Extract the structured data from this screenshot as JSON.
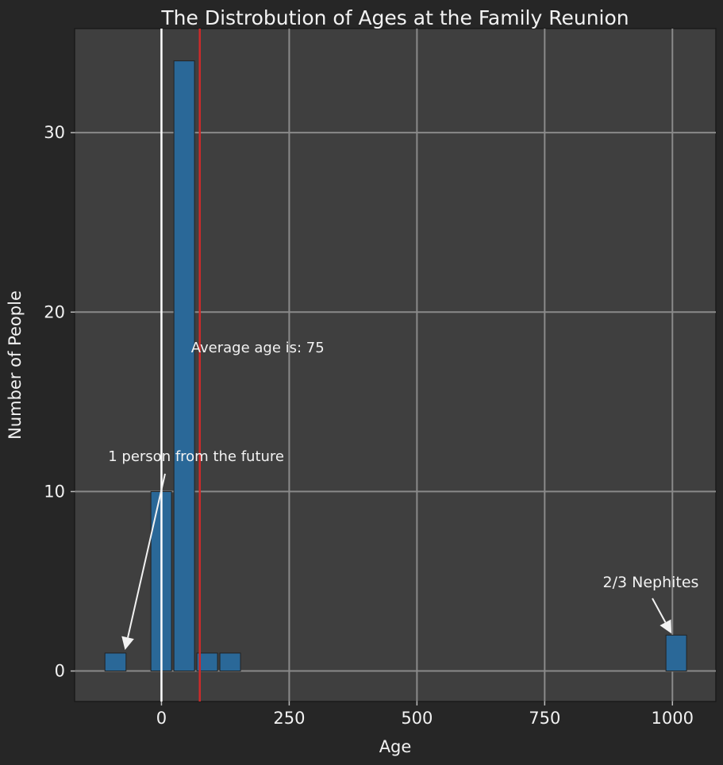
{
  "chart_data": {
    "type": "bar",
    "title": "The Distrobution of Ages at the Family Reunion",
    "xlabel": "Age",
    "ylabel": "Number of People",
    "xlim": [
      -170,
      1085
    ],
    "ylim": [
      -1.7,
      35.8
    ],
    "xticks": [
      0,
      250,
      500,
      750,
      1000
    ],
    "yticks": [
      0,
      10,
      20,
      30
    ],
    "xtick_labels": [
      "0",
      "250",
      "500",
      "750",
      "1000"
    ],
    "ytick_labels": [
      "0",
      "10",
      "20",
      "30"
    ],
    "grid": true,
    "bins": [
      {
        "x0": -113,
        "x1": -67,
        "count": 1
      },
      {
        "x0": -23,
        "x1": 22,
        "count": 10
      },
      {
        "x0": 22,
        "x1": 67,
        "count": 34
      },
      {
        "x0": 67,
        "x1": 112,
        "count": 1
      },
      {
        "x0": 112,
        "x1": 157,
        "count": 1
      },
      {
        "x0": 985,
        "x1": 1030,
        "count": 2
      }
    ],
    "reference_lines": {
      "zero_age": 0,
      "mean_age": 75
    },
    "annotations": {
      "mean_text": "Average age is: 75",
      "future_text": "1 person from the future",
      "nephites_text": "2/3 Nephites"
    },
    "colors": {
      "bar": "#2a6898",
      "mean_line": "#cc2a2a",
      "zero_line": "#ffffff",
      "panel": "#3f3f3f",
      "background": "#262626",
      "grid": "#8a8a8a"
    }
  }
}
